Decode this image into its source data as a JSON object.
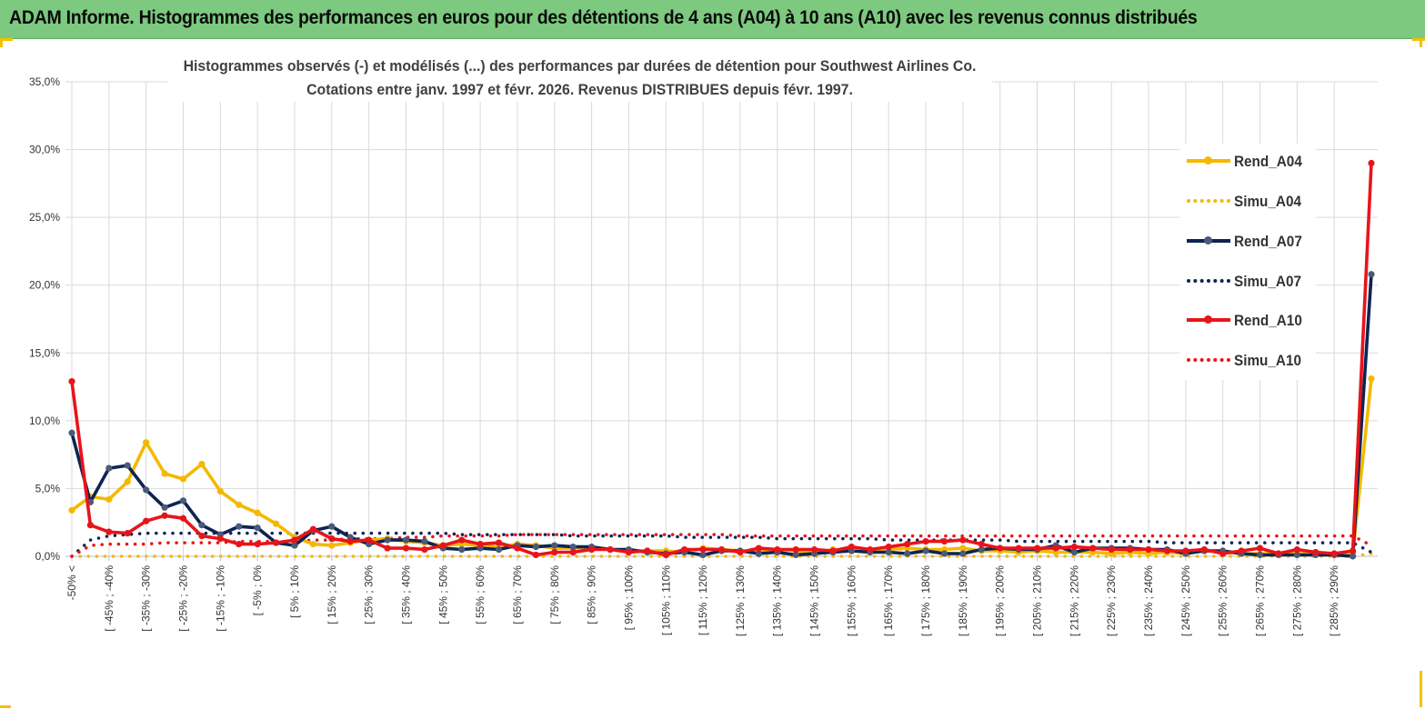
{
  "header": {
    "title": "ADAM Informe. Histogrammes des performances en euros pour des détentions de 4 ans (A04) à 10 ans (A10) avec les revenus connus distribués"
  },
  "colors": {
    "banner": "#7cc97f",
    "A04": "#f5b800",
    "A07": "#0d2453",
    "A10": "#e8141b",
    "corner_accent": "#f2c200"
  },
  "chart_data": {
    "type": "line",
    "title": "Histogrammes observés (-) et modélisés (...) des performances par durées de détention pour Southwest Airlines Co.",
    "subtitle": "Cotations entre janv. 1997 et févr. 2026. Revenus DISTRIBUES depuis févr. 1997.",
    "xlabel": "",
    "ylabel": "",
    "ylim": [
      0,
      0.35
    ],
    "yticks": [
      "0,0%",
      "5,0%",
      "10,0%",
      "15,0%",
      "20,0%",
      "25,0%",
      "30,0%",
      "35,0%"
    ],
    "grid": true,
    "legend_position": "right",
    "x_tick_labels": [
      "-50% <",
      "[ -45% ; -40%",
      "[ -35% ; -30%",
      "[ -25% ; -20%",
      "[ -15% ; -10%",
      "[ -5% ; 0%",
      "[ 5% ; 10%",
      "[ 15% ; 20%",
      "[ 25% ; 30%",
      "[ 35% ; 40%",
      "[ 45% ; 50%",
      "[ 55% ; 60%",
      "[ 65% ; 70%",
      "[ 75% ; 80%",
      "[ 85% ; 90%",
      "[ 95% ; 100%",
      "[ 105% ; 110%",
      "[ 115% ; 120%",
      "[ 125% ; 130%",
      "[ 135% ; 140%",
      "[ 145% ; 150%",
      "[ 155% ; 160%",
      "[ 165% ; 170%",
      "[ 175% ; 180%",
      "[ 185% ; 190%",
      "[ 195% ; 200%",
      "[ 205% ; 210%",
      "[ 215% ; 220%",
      "[ 225% ; 230%",
      "[ 235% ; 240%",
      "[ 245% ; 250%",
      "[ 255% ; 260%",
      "[ 265% ; 270%",
      "[ 275% ; 280%",
      "[ 285% ; 290%"
    ],
    "n_points": 71,
    "series": [
      {
        "name": "Rend_A04",
        "style": "solid",
        "color": "#f5b800",
        "values": [
          0.034,
          0.044,
          0.042,
          0.055,
          0.084,
          0.061,
          0.057,
          0.068,
          0.048,
          0.038,
          0.032,
          0.024,
          0.014,
          0.009,
          0.008,
          0.01,
          0.012,
          0.013,
          0.011,
          0.01,
          0.008,
          0.009,
          0.008,
          0.007,
          0.009,
          0.008,
          0.006,
          0.006,
          0.006,
          0.005,
          0.004,
          0.004,
          0.004,
          0.003,
          0.006,
          0.005,
          0.004,
          0.004,
          0.005,
          0.004,
          0.002,
          0.005,
          0.004,
          0.003,
          0.005,
          0.006,
          0.005,
          0.005,
          0.006,
          0.004,
          0.004,
          0.003,
          0.004,
          0.003,
          0.003,
          0.003,
          0.002,
          0.003,
          0.002,
          0.003,
          0.002,
          0.004,
          0.003,
          0.002,
          0.002,
          0.002,
          0.002,
          0.002,
          0.002,
          0.002,
          0.131
        ]
      },
      {
        "name": "Simu_A04",
        "style": "dotted",
        "color": "#f5b800",
        "values": [
          0.0,
          0.0,
          0.0,
          0.0,
          0.0,
          0.0,
          0.0,
          0.0,
          0.0,
          0.0,
          0.0,
          0.0,
          0.0,
          0.0,
          0.0,
          0.0,
          0.0,
          0.0,
          0.0,
          0.0,
          0.0,
          0.0,
          0.0,
          0.0,
          0.0,
          0.0,
          0.0,
          0.0,
          0.0,
          0.0,
          0.0,
          0.0,
          0.0,
          0.0,
          0.0,
          0.0,
          0.0,
          0.0,
          0.0,
          0.0,
          0.0,
          0.0,
          0.0,
          0.0,
          0.0,
          0.0,
          0.0,
          0.0,
          0.0,
          0.0,
          0.0,
          0.0,
          0.0,
          0.0,
          0.0,
          0.0,
          0.0,
          0.0,
          0.0,
          0.0,
          0.0,
          0.0,
          0.0,
          0.0,
          0.0,
          0.0,
          0.0,
          0.0,
          0.0,
          0.0,
          0.002
        ]
      },
      {
        "name": "Rend_A07",
        "style": "solid",
        "color": "#0d2453",
        "values": [
          0.091,
          0.04,
          0.065,
          0.067,
          0.049,
          0.036,
          0.041,
          0.023,
          0.016,
          0.022,
          0.021,
          0.01,
          0.008,
          0.019,
          0.022,
          0.014,
          0.009,
          0.012,
          0.012,
          0.011,
          0.006,
          0.005,
          0.006,
          0.005,
          0.008,
          0.007,
          0.008,
          0.007,
          0.007,
          0.005,
          0.005,
          0.003,
          0.002,
          0.003,
          0.001,
          0.004,
          0.004,
          0.002,
          0.003,
          0.001,
          0.002,
          0.003,
          0.004,
          0.003,
          0.003,
          0.002,
          0.004,
          0.002,
          0.002,
          0.005,
          0.006,
          0.005,
          0.005,
          0.008,
          0.003,
          0.006,
          0.006,
          0.006,
          0.005,
          0.005,
          0.002,
          0.004,
          0.004,
          0.002,
          0.001,
          0.001,
          0.001,
          0.001,
          0.001,
          0.0,
          0.208
        ]
      },
      {
        "name": "Simu_A07",
        "style": "dotted",
        "color": "#0d2453",
        "values": [
          0.0,
          0.012,
          0.015,
          0.016,
          0.017,
          0.017,
          0.017,
          0.017,
          0.017,
          0.017,
          0.017,
          0.017,
          0.017,
          0.017,
          0.017,
          0.017,
          0.017,
          0.017,
          0.017,
          0.017,
          0.017,
          0.016,
          0.016,
          0.016,
          0.016,
          0.016,
          0.016,
          0.015,
          0.015,
          0.015,
          0.015,
          0.015,
          0.015,
          0.014,
          0.014,
          0.014,
          0.014,
          0.014,
          0.013,
          0.013,
          0.013,
          0.013,
          0.013,
          0.013,
          0.012,
          0.012,
          0.012,
          0.012,
          0.012,
          0.012,
          0.012,
          0.011,
          0.011,
          0.011,
          0.011,
          0.011,
          0.011,
          0.011,
          0.011,
          0.01,
          0.01,
          0.01,
          0.01,
          0.01,
          0.01,
          0.01,
          0.01,
          0.01,
          0.01,
          0.01,
          0.003
        ]
      },
      {
        "name": "Rend_A10",
        "style": "solid",
        "color": "#e8141b",
        "values": [
          0.129,
          0.023,
          0.018,
          0.017,
          0.026,
          0.03,
          0.028,
          0.015,
          0.013,
          0.009,
          0.009,
          0.01,
          0.012,
          0.02,
          0.013,
          0.011,
          0.012,
          0.006,
          0.006,
          0.005,
          0.008,
          0.012,
          0.009,
          0.01,
          0.006,
          0.001,
          0.003,
          0.003,
          0.005,
          0.005,
          0.003,
          0.004,
          0.001,
          0.005,
          0.005,
          0.005,
          0.003,
          0.006,
          0.005,
          0.005,
          0.005,
          0.004,
          0.007,
          0.005,
          0.007,
          0.009,
          0.011,
          0.011,
          0.012,
          0.009,
          0.006,
          0.006,
          0.006,
          0.006,
          0.007,
          0.006,
          0.005,
          0.005,
          0.005,
          0.004,
          0.004,
          0.005,
          0.002,
          0.004,
          0.006,
          0.002,
          0.005,
          0.003,
          0.002,
          0.004,
          0.29
        ]
      },
      {
        "name": "Simu_A10",
        "style": "dotted",
        "color": "#e8141b",
        "values": [
          0.0,
          0.008,
          0.009,
          0.009,
          0.009,
          0.01,
          0.01,
          0.01,
          0.01,
          0.011,
          0.011,
          0.011,
          0.011,
          0.012,
          0.012,
          0.013,
          0.013,
          0.013,
          0.014,
          0.014,
          0.015,
          0.015,
          0.015,
          0.015,
          0.016,
          0.016,
          0.016,
          0.016,
          0.016,
          0.016,
          0.016,
          0.016,
          0.016,
          0.016,
          0.016,
          0.016,
          0.015,
          0.015,
          0.015,
          0.015,
          0.015,
          0.015,
          0.015,
          0.015,
          0.015,
          0.015,
          0.015,
          0.015,
          0.015,
          0.015,
          0.015,
          0.015,
          0.015,
          0.015,
          0.015,
          0.015,
          0.015,
          0.015,
          0.015,
          0.015,
          0.015,
          0.015,
          0.015,
          0.015,
          0.015,
          0.015,
          0.015,
          0.015,
          0.015,
          0.015,
          0.008
        ]
      }
    ]
  }
}
